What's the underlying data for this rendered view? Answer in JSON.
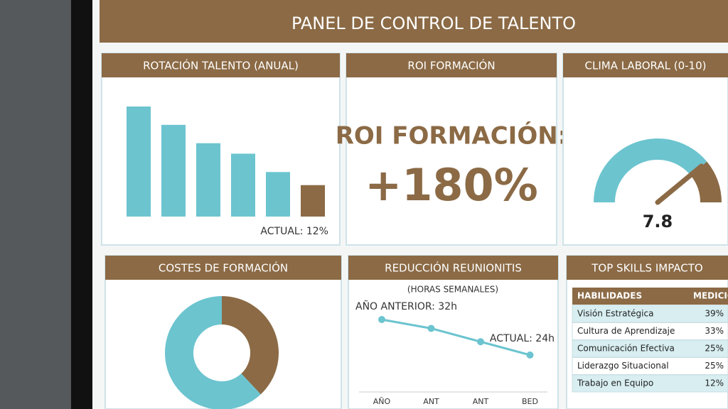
{
  "title": "PANEL DE CONTROL DE TALENTO",
  "chart_data": [
    {
      "type": "bar",
      "title": "ROTACIÓN TALENTO (ANUAL)",
      "values": [
        42,
        35,
        28,
        24,
        17,
        12
      ],
      "colors": [
        "#6cc4cf",
        "#6cc4cf",
        "#6cc4cf",
        "#6cc4cf",
        "#6cc4cf",
        "#8b6a45"
      ],
      "annotation": "ACTUAL: 12%"
    },
    {
      "type": "kpi",
      "title": "ROI FORMACIÓN",
      "label": "ROI FORMACIÓN:",
      "value_label": "+180%"
    },
    {
      "type": "gauge",
      "title": "CLIMA LABORAL (0-10)",
      "value": 7.8,
      "ylim": [
        0,
        10
      ],
      "colors": [
        "#6cc4cf",
        "#8b6a45"
      ]
    },
    {
      "type": "donut",
      "title": "COSTES DE FORMACIÓN",
      "values": [
        38,
        62
      ],
      "colors": [
        "#8b6a45",
        "#6cc4cf"
      ]
    },
    {
      "type": "line",
      "title": "REDUCCIÓN REUNIONITIS",
      "subtitle": "(HORAS SEMANALES)",
      "categories": [
        "AÑO",
        "ANT",
        "ANT",
        "BED"
      ],
      "values": [
        32,
        30,
        27,
        24
      ],
      "color": "#6cc4cf",
      "annotations": [
        "AÑO ANTERIOR: 32h",
        "ACTUAL: 24h"
      ]
    },
    {
      "type": "table",
      "title": "TOP SKILLS IMPACTO",
      "columns": [
        "HABILIDADES",
        "MEDICIÓN"
      ],
      "rows": [
        [
          "Visión Estratégica",
          "39%"
        ],
        [
          "Cultura de Aprendizaje",
          "33%"
        ],
        [
          "Comunicación Efectiva",
          "25%"
        ],
        [
          "Liderazgo Situacional",
          "25%"
        ],
        [
          "Trabajo en Equipo",
          "12%"
        ]
      ]
    }
  ]
}
